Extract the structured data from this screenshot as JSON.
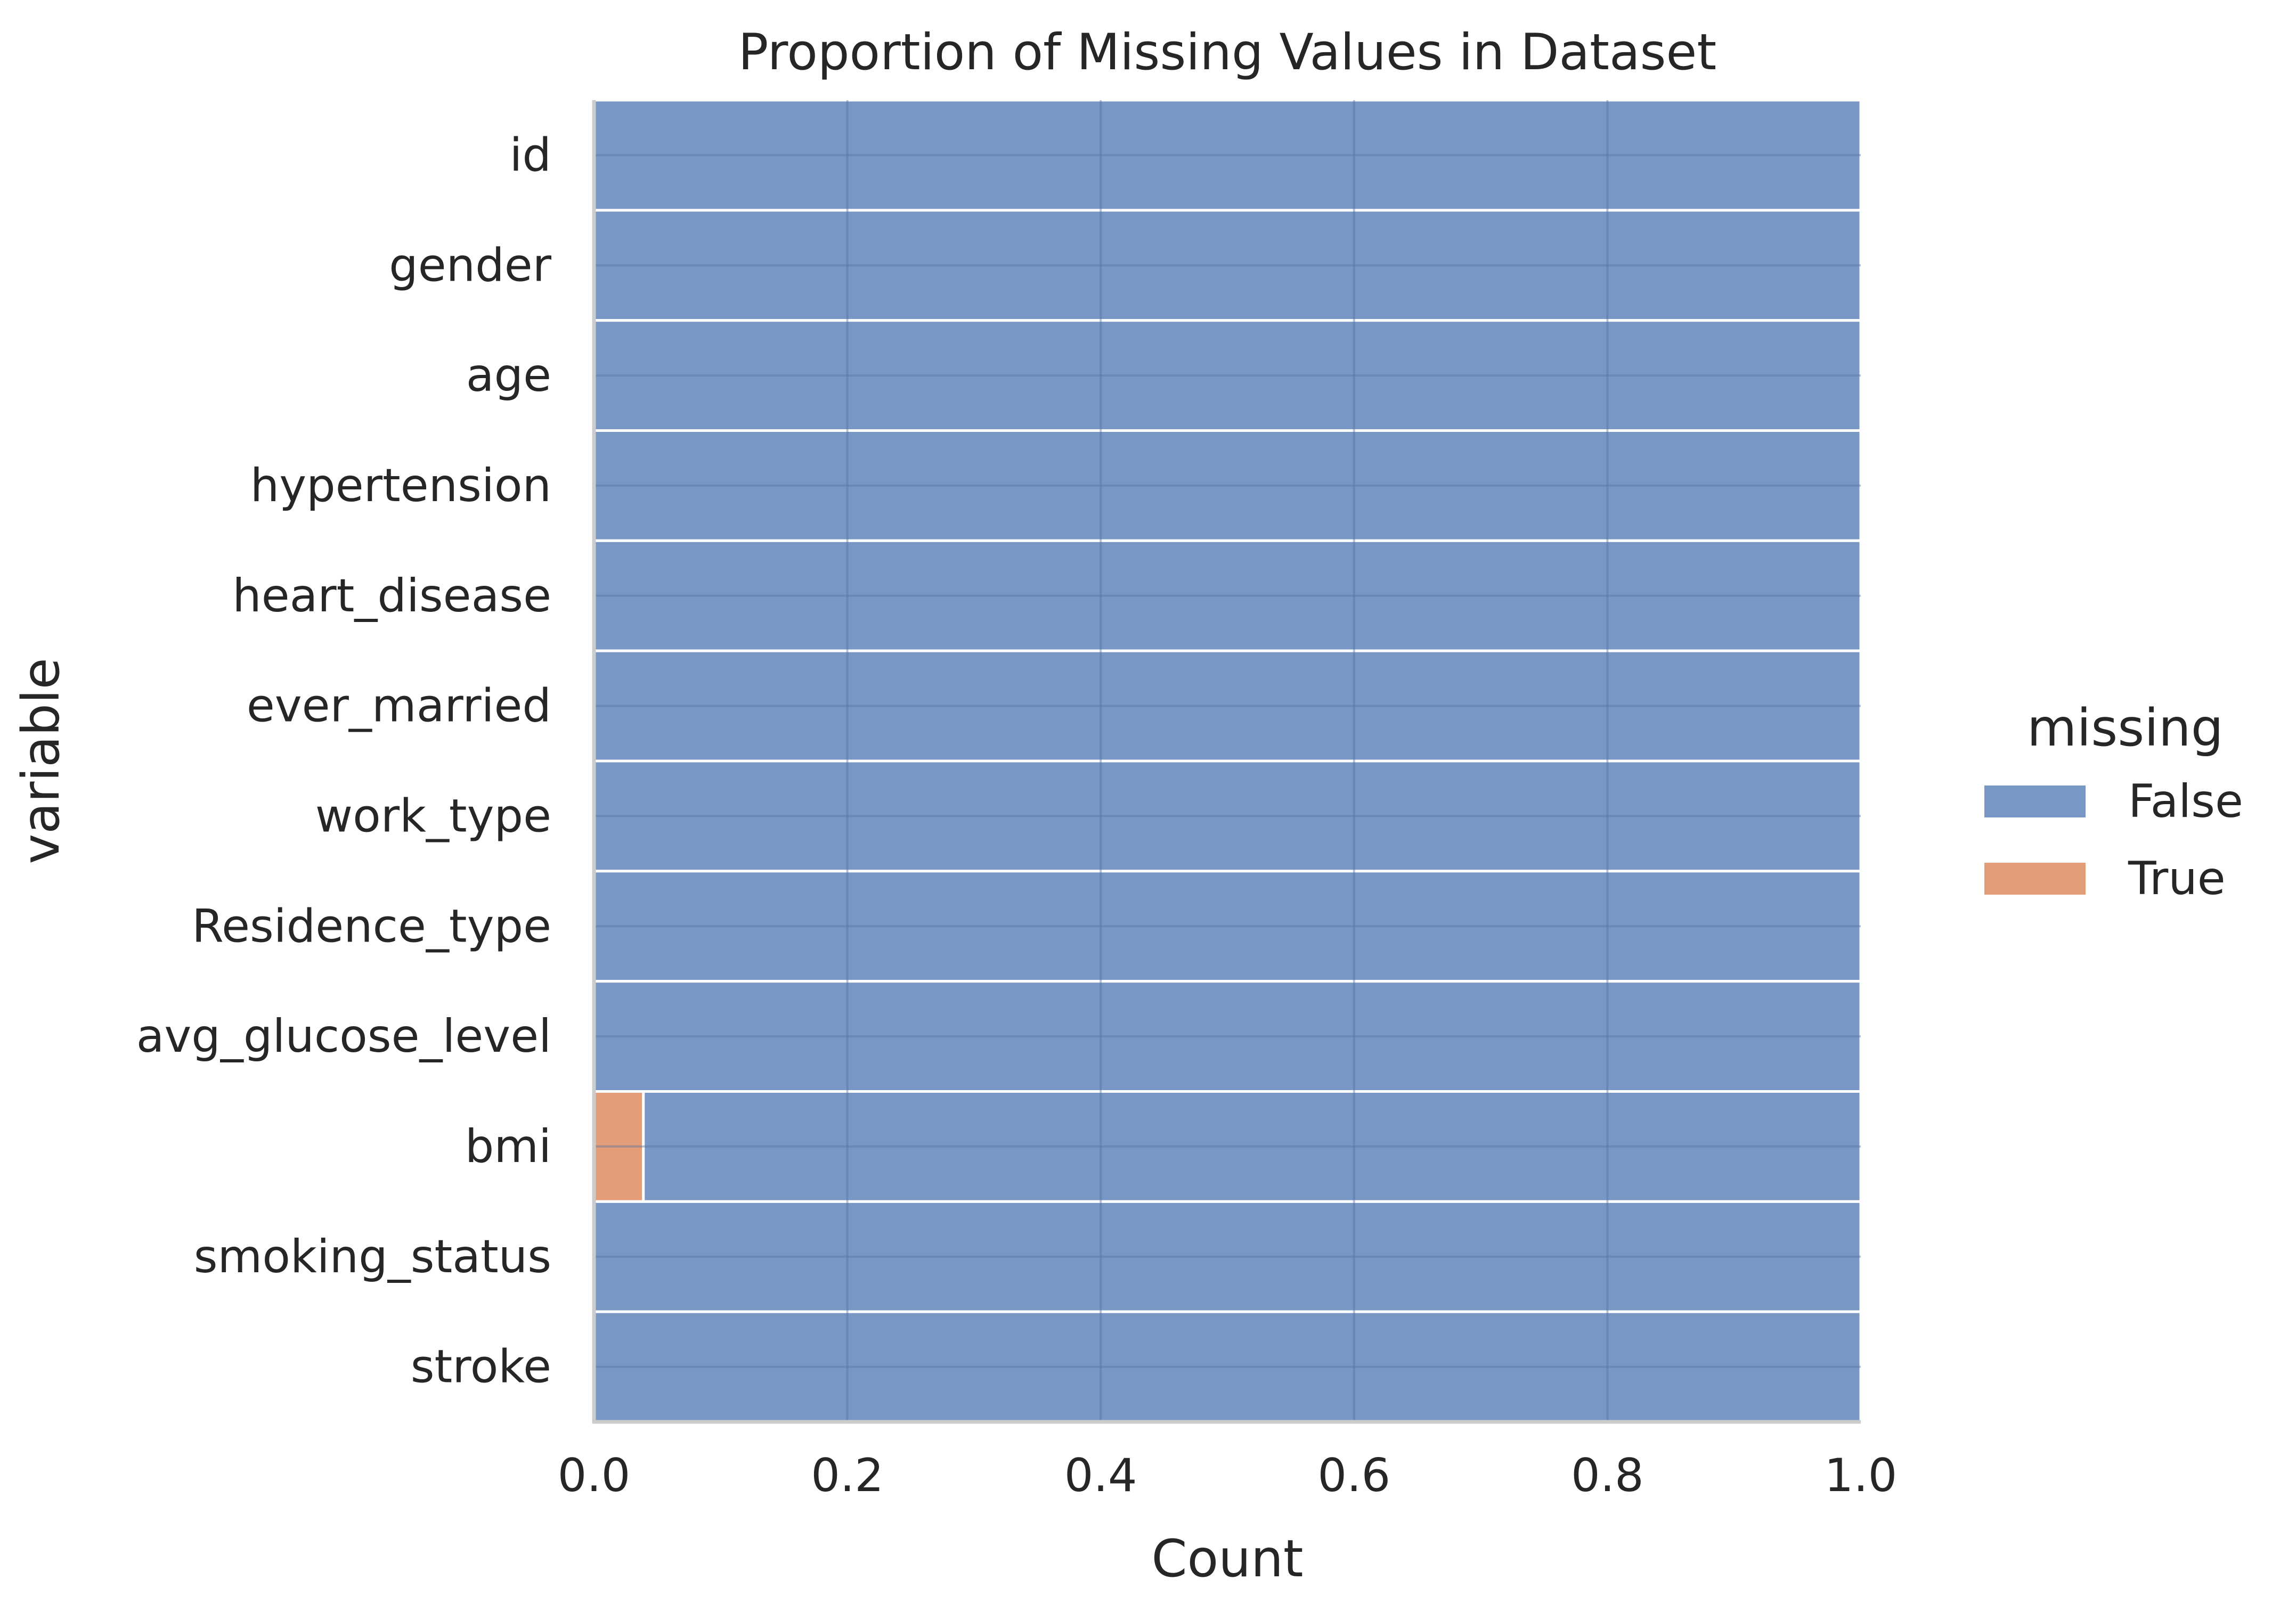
{
  "chart_data": {
    "type": "bar",
    "orientation": "horizontal",
    "stacked": true,
    "title": "Proportion of Missing Values in Dataset",
    "xlabel": "Count",
    "ylabel": "variable",
    "xlim": [
      0.0,
      1.0
    ],
    "xticks": [
      "0.0",
      "0.2",
      "0.4",
      "0.6",
      "0.8",
      "1.0"
    ],
    "grid": true,
    "legend": {
      "title": "missing",
      "position": "right"
    },
    "categories": [
      "id",
      "gender",
      "age",
      "hypertension",
      "heart_disease",
      "ever_married",
      "work_type",
      "Residence_type",
      "avg_glucose_level",
      "bmi",
      "smoking_status",
      "stroke"
    ],
    "series": [
      {
        "name": "True",
        "color": "#e1956c",
        "values": [
          0,
          0,
          0,
          0,
          0,
          0,
          0,
          0,
          0,
          0.039,
          0,
          0
        ]
      },
      {
        "name": "False",
        "color": "#6c8ebf",
        "values": [
          1,
          1,
          1,
          1,
          1,
          1,
          1,
          1,
          1,
          0.961,
          1,
          1
        ]
      }
    ],
    "legend_order": [
      "False",
      "True"
    ]
  }
}
